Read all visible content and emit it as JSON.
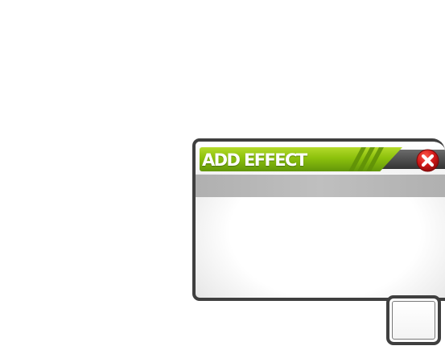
{
  "dialog": {
    "title": "ADD EFFECT",
    "close_icon": "close-x-icon",
    "colors": {
      "title_green": "#8cc10c",
      "frame": "#3f3f3f",
      "close_red": "#d01818",
      "subheader": "#b8b8b8"
    }
  }
}
